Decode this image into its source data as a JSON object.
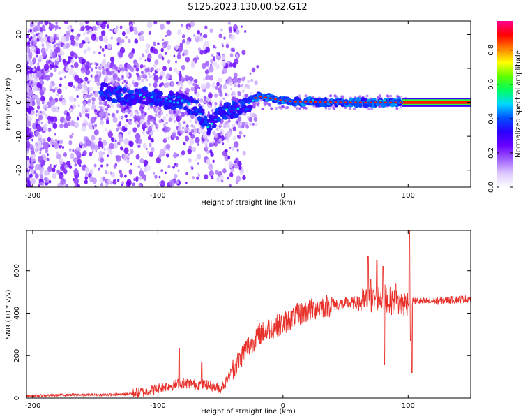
{
  "figure": {
    "title": "S125.2023.130.00.52.G12"
  },
  "chart_data": [
    {
      "type": "heatmap",
      "xlabel": "Height of straight line (km)",
      "ylabel": "Frequency (Hz)",
      "xlim": [
        -205,
        150
      ],
      "ylim": [
        -25,
        24
      ],
      "xticks": [
        -200,
        -100,
        0,
        100
      ],
      "yticks": [
        -20,
        -10,
        0,
        10,
        20
      ],
      "colorbar": {
        "label": "Normalized spectral amplitude",
        "range": [
          0,
          0.97
        ],
        "ticks": [
          0.0,
          0.2,
          0.4,
          0.6,
          0.8
        ],
        "tick_labels": [
          "0.0",
          "0.2",
          "0.4",
          "0.6",
          "0.8"
        ],
        "colormap": [
          "#ffffff",
          "#dcc8ff",
          "#a060ff",
          "#6a00ff",
          "#2a00ff",
          "#0050ff",
          "#00d8ff",
          "#00ff60",
          "#60ff00",
          "#ffff00",
          "#ff8000",
          "#ff0000",
          "#ff0090"
        ]
      },
      "ridge": [
        [
          -140,
          3
        ],
        [
          -130,
          2
        ],
        [
          -120,
          1.5
        ],
        [
          -110,
          2
        ],
        [
          -100,
          1
        ],
        [
          -90,
          0.5
        ],
        [
          -80,
          0
        ],
        [
          -70,
          -1.5
        ],
        [
          -60,
          -7
        ],
        [
          -50,
          -3
        ],
        [
          -40,
          -2
        ],
        [
          -30,
          -1.5
        ],
        [
          -25,
          0.5
        ],
        [
          -20,
          1.8
        ],
        [
          -10,
          1.2
        ],
        [
          0,
          0.5
        ],
        [
          10,
          0.2
        ],
        [
          50,
          0
        ],
        [
          100,
          0
        ],
        [
          150,
          0
        ]
      ],
      "grid": false
    },
    {
      "type": "line",
      "xlabel": "Height of straight line (km)",
      "ylabel": "SNR (10 * v/v)",
      "xlim": [
        -205,
        150
      ],
      "ylim": [
        0,
        790
      ],
      "xticks": [
        -200,
        -100,
        0,
        100
      ],
      "yticks": [
        0,
        200,
        400,
        600
      ],
      "color": "#e8302a",
      "series": [
        {
          "x": [
            -205,
            -190,
            -170,
            -150,
            -130,
            -120,
            -110,
            -100,
            -90,
            -80,
            -70,
            -60,
            -55,
            -50,
            -45,
            -40,
            -35,
            -30,
            -25,
            -20,
            -15,
            -10,
            -5,
            0,
            10,
            20,
            30,
            40,
            50,
            60,
            70,
            75,
            80,
            85,
            90,
            95,
            100,
            103,
            110,
            120,
            130,
            140,
            150
          ],
          "values": [
            10,
            12,
            15,
            15,
            17,
            22,
            30,
            45,
            60,
            70,
            65,
            60,
            50,
            45,
            80,
            140,
            180,
            230,
            260,
            300,
            310,
            330,
            340,
            350,
            390,
            410,
            430,
            440,
            445,
            450,
            460,
            470,
            480,
            460,
            450,
            440,
            450,
            460,
            455,
            455,
            460,
            465,
            468
          ],
          "spikes": [
            [
              -83,
              235
            ],
            [
              -65,
              170
            ],
            [
              -38,
              160
            ],
            [
              -10,
              320
            ],
            [
              68,
              670
            ],
            [
              70,
              560
            ],
            [
              75,
              650
            ],
            [
              80,
              620
            ],
            [
              81,
              160
            ],
            [
              90,
              540
            ],
            [
              101,
              790
            ],
            [
              102,
              270
            ],
            [
              103,
              120
            ]
          ]
        }
      ],
      "grid": false
    }
  ]
}
